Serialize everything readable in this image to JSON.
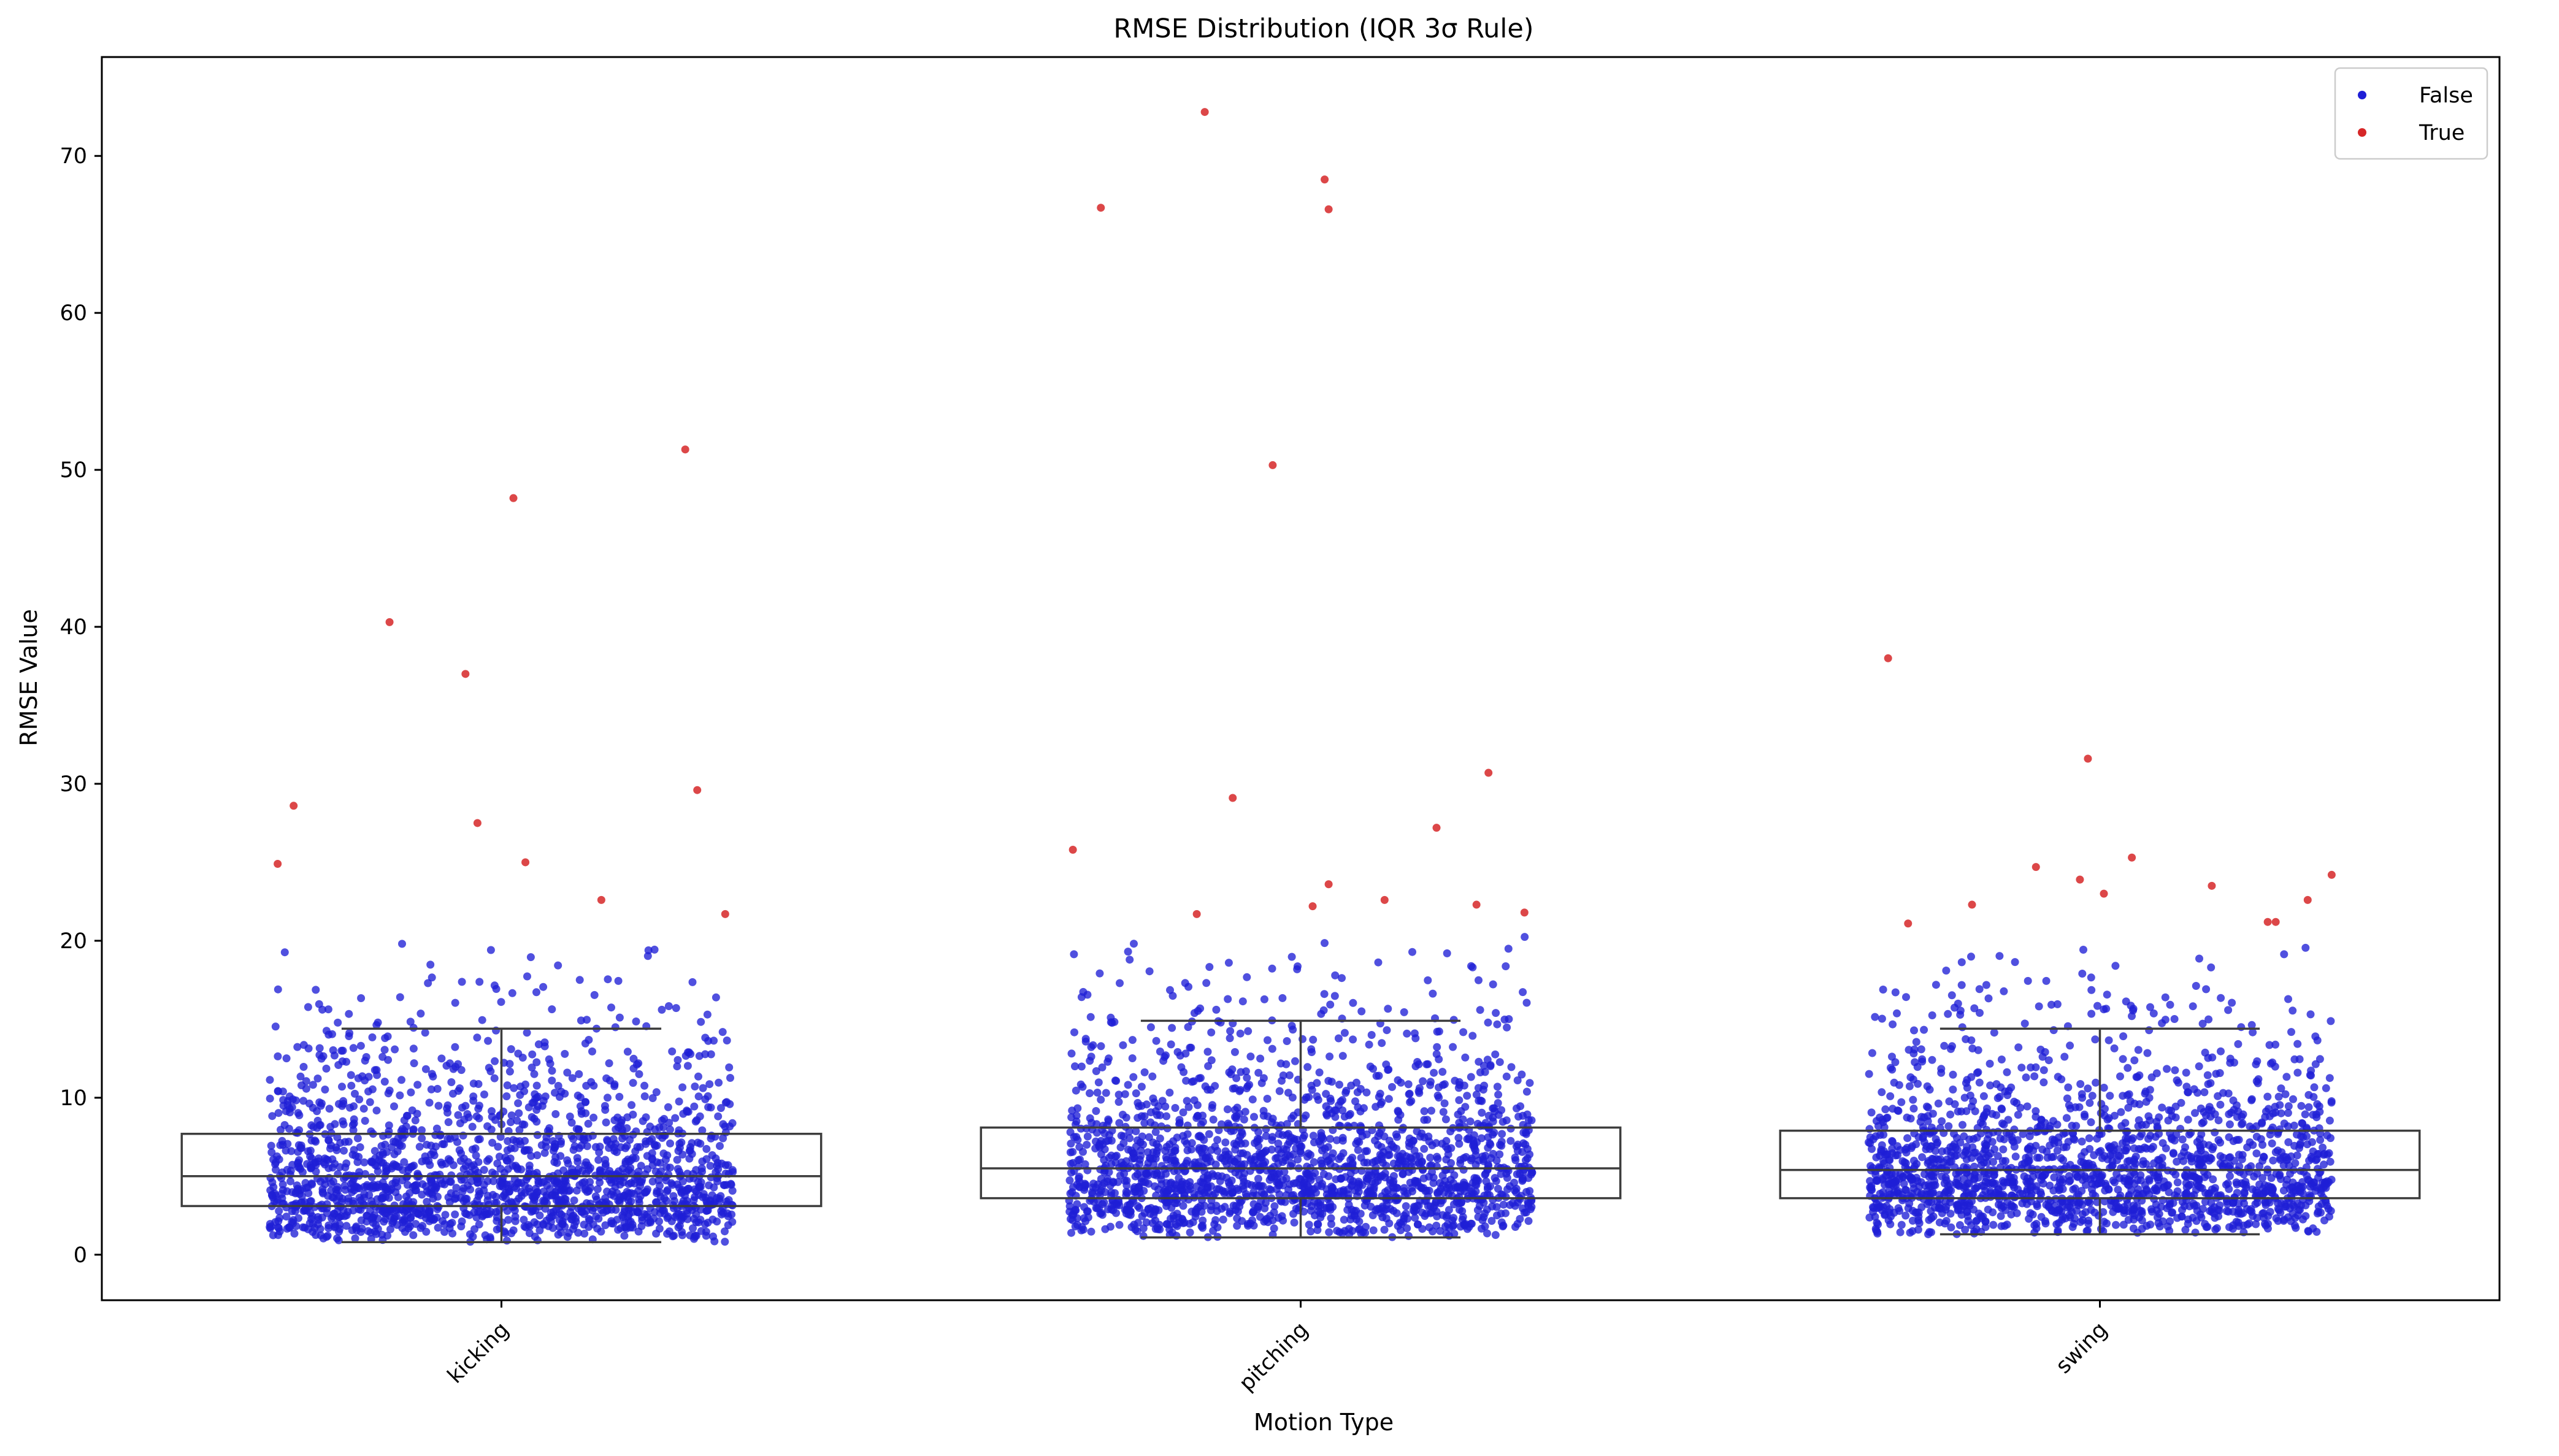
{
  "chart_data": {
    "type": "box-strip",
    "title": "RMSE Distribution (IQR 3σ Rule)",
    "xlabel": "Motion Type",
    "ylabel": "RMSE Value",
    "categories": [
      "kicking",
      "pitching",
      "swing"
    ],
    "ylim": [
      -2.9,
      76.3
    ],
    "yticks": [
      0,
      10,
      20,
      30,
      40,
      50,
      60,
      70
    ],
    "grid": false,
    "legend": {
      "placement": "top-right",
      "entries": [
        {
          "label": "False",
          "color": "#1f1fd6"
        },
        {
          "label": "True",
          "color": "#d62728"
        }
      ]
    },
    "boxes": [
      {
        "category": "kicking",
        "whisker_low": 0.8,
        "q1": 3.1,
        "median": 5.0,
        "q3": 7.7,
        "whisker_high": 14.4
      },
      {
        "category": "pitching",
        "whisker_low": 1.1,
        "q1": 3.6,
        "median": 5.5,
        "q3": 8.1,
        "whisker_high": 14.9
      },
      {
        "category": "swing",
        "whisker_low": 1.3,
        "q1": 3.6,
        "median": 5.4,
        "q3": 7.9,
        "whisker_high": 14.4
      }
    ],
    "outliers": [
      {
        "category": "kicking",
        "offset": -0.28,
        "y": 24.9
      },
      {
        "category": "kicking",
        "offset": -0.26,
        "y": 28.6
      },
      {
        "category": "kicking",
        "offset": -0.14,
        "y": 40.3
      },
      {
        "category": "kicking",
        "offset": -0.045,
        "y": 37.0
      },
      {
        "category": "kicking",
        "offset": -0.03,
        "y": 27.5
      },
      {
        "category": "kicking",
        "offset": 0.015,
        "y": 48.2
      },
      {
        "category": "kicking",
        "offset": 0.03,
        "y": 25.0
      },
      {
        "category": "kicking",
        "offset": 0.125,
        "y": 22.6
      },
      {
        "category": "kicking",
        "offset": 0.23,
        "y": 51.3
      },
      {
        "category": "kicking",
        "offset": 0.245,
        "y": 29.6
      },
      {
        "category": "kicking",
        "offset": 0.28,
        "y": 21.7
      },
      {
        "category": "pitching",
        "offset": -0.285,
        "y": 25.8
      },
      {
        "category": "pitching",
        "offset": -0.25,
        "y": 66.7
      },
      {
        "category": "pitching",
        "offset": -0.13,
        "y": 21.7
      },
      {
        "category": "pitching",
        "offset": -0.12,
        "y": 72.8
      },
      {
        "category": "pitching",
        "offset": -0.085,
        "y": 29.1
      },
      {
        "category": "pitching",
        "offset": -0.035,
        "y": 50.3
      },
      {
        "category": "pitching",
        "offset": 0.015,
        "y": 22.2
      },
      {
        "category": "pitching",
        "offset": 0.03,
        "y": 68.5
      },
      {
        "category": "pitching",
        "offset": 0.035,
        "y": 23.6
      },
      {
        "category": "pitching",
        "offset": 0.035,
        "y": 66.6
      },
      {
        "category": "pitching",
        "offset": 0.105,
        "y": 22.6
      },
      {
        "category": "pitching",
        "offset": 0.17,
        "y": 27.2
      },
      {
        "category": "pitching",
        "offset": 0.22,
        "y": 22.3
      },
      {
        "category": "pitching",
        "offset": 0.235,
        "y": 30.7
      },
      {
        "category": "pitching",
        "offset": 0.28,
        "y": 21.8
      },
      {
        "category": "swing",
        "offset": -0.265,
        "y": 38.0
      },
      {
        "category": "swing",
        "offset": -0.24,
        "y": 21.1
      },
      {
        "category": "swing",
        "offset": -0.16,
        "y": 22.3
      },
      {
        "category": "swing",
        "offset": -0.08,
        "y": 24.7
      },
      {
        "category": "swing",
        "offset": -0.025,
        "y": 23.9
      },
      {
        "category": "swing",
        "offset": -0.015,
        "y": 31.6
      },
      {
        "category": "swing",
        "offset": 0.005,
        "y": 23.0
      },
      {
        "category": "swing",
        "offset": 0.04,
        "y": 25.3
      },
      {
        "category": "swing",
        "offset": 0.14,
        "y": 23.5
      },
      {
        "category": "swing",
        "offset": 0.21,
        "y": 21.2
      },
      {
        "category": "swing",
        "offset": 0.22,
        "y": 21.2
      },
      {
        "category": "swing",
        "offset": 0.26,
        "y": 22.6
      },
      {
        "category": "swing",
        "offset": 0.29,
        "y": 24.2
      }
    ],
    "inlier_counts": {
      "kicking": 1800,
      "pitching": 1850,
      "swing": 1800
    }
  }
}
